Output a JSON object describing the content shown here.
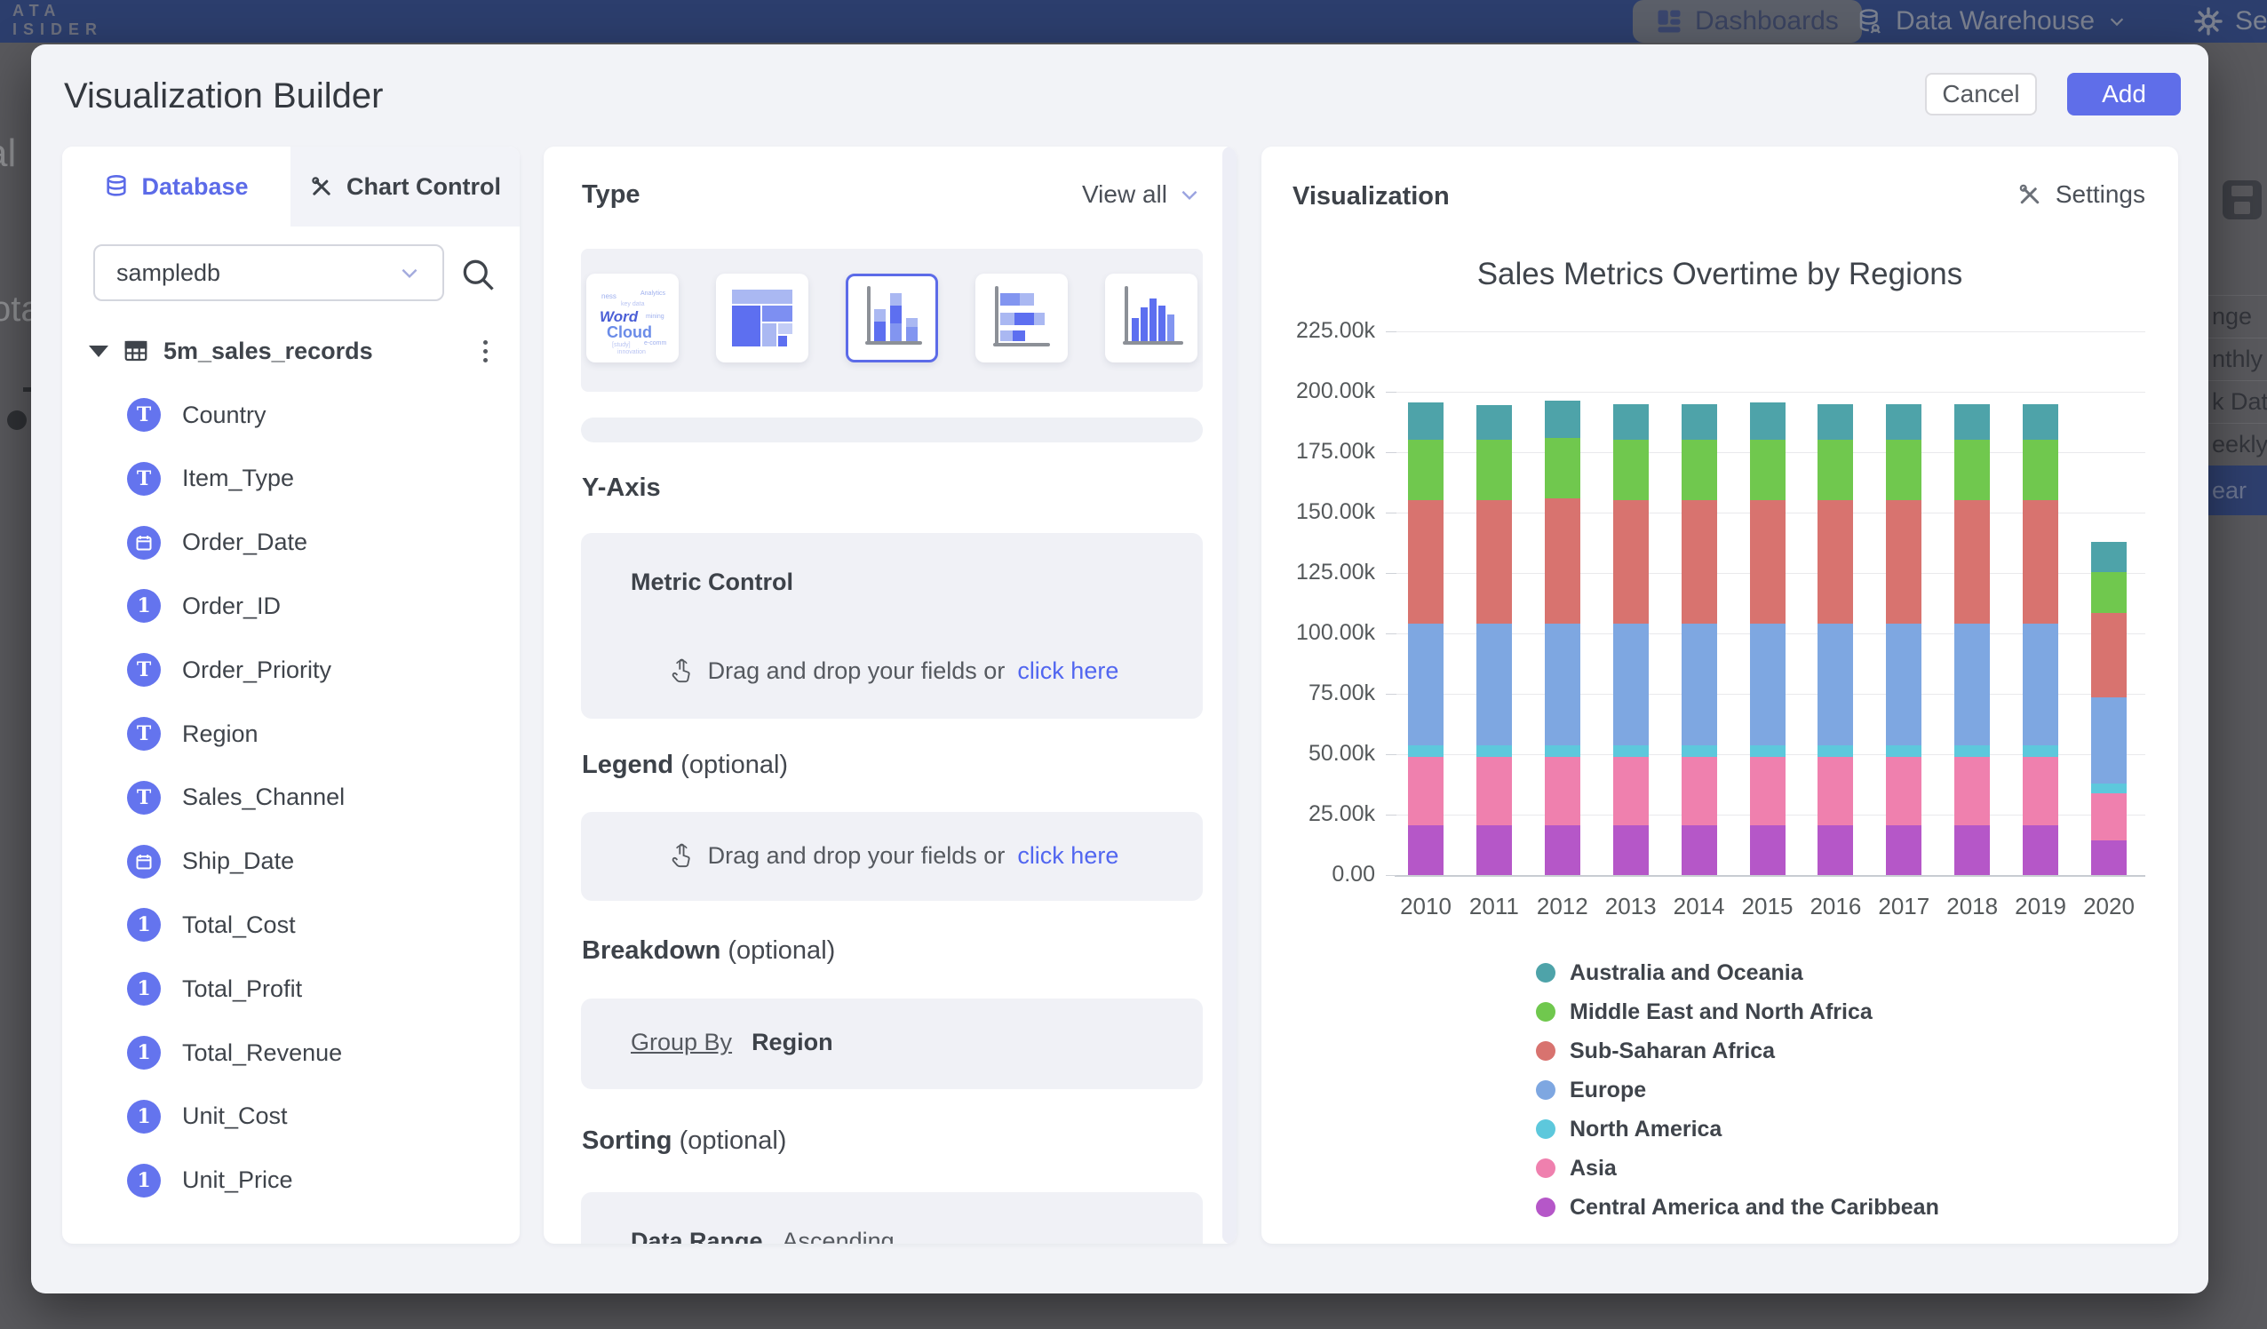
{
  "nav": {
    "logo_line1": "ATA",
    "logo_line2": "ISIDER",
    "dashboards": "Dashboards",
    "data_warehouse": "Data Warehouse",
    "settings": "Settings"
  },
  "backdrop": {
    "left_fragment_1": "al",
    "left_fragment_2": "ota",
    "right_menu": [
      "nge",
      "nthly",
      "k Date",
      "eekly",
      "ear"
    ],
    "right_menu_selected_index": 4
  },
  "modal": {
    "title": "Visualization Builder",
    "cancel": "Cancel",
    "add": "Add"
  },
  "left_panel": {
    "tab_database": "Database",
    "tab_chart_control": "Chart Control",
    "db_select_value": "sampledb",
    "table_name": "5m_sales_records",
    "fields": [
      {
        "name": "Country",
        "type": "text"
      },
      {
        "name": "Item_Type",
        "type": "text"
      },
      {
        "name": "Order_Date",
        "type": "date"
      },
      {
        "name": "Order_ID",
        "type": "number"
      },
      {
        "name": "Order_Priority",
        "type": "text"
      },
      {
        "name": "Region",
        "type": "text"
      },
      {
        "name": "Sales_Channel",
        "type": "text"
      },
      {
        "name": "Ship_Date",
        "type": "date"
      },
      {
        "name": "Total_Cost",
        "type": "number"
      },
      {
        "name": "Total_Profit",
        "type": "number"
      },
      {
        "name": "Total_Revenue",
        "type": "number"
      },
      {
        "name": "Unit_Cost",
        "type": "number"
      },
      {
        "name": "Unit_Price",
        "type": "number"
      }
    ]
  },
  "middle_panel": {
    "type_heading": "Type",
    "view_all": "View all",
    "type_selected_index": 2,
    "y_axis": {
      "heading": "Y-Axis",
      "control_label": "Metric Control",
      "drag_text": "Drag and drop your fields or",
      "link": "click here"
    },
    "legend": {
      "heading": "Legend",
      "optional": "(optional)",
      "drag_text": "Drag and drop your fields or",
      "link": "click here"
    },
    "breakdown": {
      "heading": "Breakdown",
      "optional": "(optional)",
      "group_by": "Group By",
      "value": "Region"
    },
    "sorting": {
      "heading": "Sorting",
      "optional": "(optional)",
      "row_label": "Data Range",
      "row_value": "Ascending"
    }
  },
  "right_panel": {
    "heading": "Visualization",
    "settings": "Settings"
  },
  "chart_data": {
    "type": "bar",
    "stacked": true,
    "title": "Sales Metrics Overtime by Regions",
    "categories": [
      "2010",
      "2011",
      "2012",
      "2013",
      "2014",
      "2015",
      "2016",
      "2017",
      "2018",
      "2019",
      "2020"
    ],
    "unit": "thousands",
    "series_bottom_to_top": [
      {
        "name": "Central America and the Caribbean",
        "color": "#b557c8",
        "values_k": [
          20.5,
          20.5,
          20.5,
          20.5,
          20.5,
          20.5,
          20.5,
          20.5,
          20.5,
          20.5,
          14.5
        ]
      },
      {
        "name": "Asia",
        "color": "#ef80ae",
        "values_k": [
          28.5,
          28.5,
          28.5,
          28.5,
          28.5,
          28.5,
          28.5,
          28.5,
          28.5,
          28.5,
          19.5
        ]
      },
      {
        "name": "North America",
        "color": "#5dc8dc",
        "values_k": [
          4.5,
          4.5,
          4.5,
          4.5,
          4.5,
          4.5,
          4.5,
          4.5,
          4.5,
          4.5,
          4.0
        ]
      },
      {
        "name": "Europe",
        "color": "#7ea7e1",
        "values_k": [
          50.5,
          50.5,
          50.5,
          50.5,
          50.5,
          50.5,
          50.5,
          50.5,
          50.5,
          50.5,
          35.5
        ]
      },
      {
        "name": "Sub-Saharan Africa",
        "color": "#d8736f",
        "values_k": [
          51.0,
          51.0,
          52.0,
          51.0,
          51.0,
          51.0,
          51.0,
          51.0,
          51.0,
          51.0,
          35.0
        ]
      },
      {
        "name": "Middle East and North Africa",
        "color": "#70c84e",
        "values_k": [
          25.0,
          25.0,
          25.0,
          25.0,
          25.0,
          25.0,
          25.0,
          25.0,
          25.0,
          25.0,
          17.0
        ]
      },
      {
        "name": "Australia and Oceania",
        "color": "#4ea3a9",
        "values_k": [
          15.5,
          14.5,
          15.5,
          15.0,
          15.0,
          15.5,
          15.0,
          15.0,
          15.0,
          15.0,
          12.5
        ]
      }
    ],
    "ylim_k": [
      0,
      225
    ],
    "ytick_step_k": 25,
    "ytick_labels": [
      "0.00",
      "25.00k",
      "50.00k",
      "75.00k",
      "100.00k",
      "125.00k",
      "150.00k",
      "175.00k",
      "200.00k",
      "225.00k"
    ],
    "grid": true,
    "legend_position": "bottom"
  }
}
